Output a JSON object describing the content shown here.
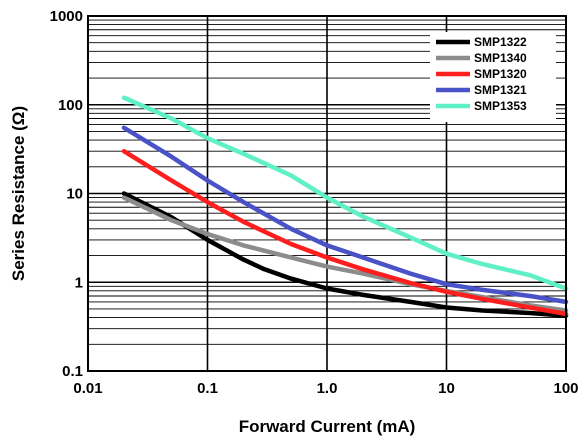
{
  "chart_data": {
    "type": "line",
    "xlabel": "Forward Current (mA)",
    "ylabel": "Series Resistance (Ω)",
    "x_scale": "log",
    "y_scale": "log",
    "xlim": [
      0.01,
      100
    ],
    "ylim": [
      0.1,
      1000
    ],
    "x_ticks": [
      {
        "value": 0.01,
        "label": "0.01"
      },
      {
        "value": 0.1,
        "label": "0.1"
      },
      {
        "value": 1,
        "label": "1.0"
      },
      {
        "value": 10,
        "label": "10"
      },
      {
        "value": 100,
        "label": "100"
      }
    ],
    "y_ticks": [
      {
        "value": 0.1,
        "label": "0.1"
      },
      {
        "value": 1,
        "label": "1"
      },
      {
        "value": 10,
        "label": "10"
      },
      {
        "value": 100,
        "label": "100"
      },
      {
        "value": 1000,
        "label": "1000"
      }
    ],
    "grid": true,
    "legend_position": "top-right",
    "series": [
      {
        "name": "SMP1322",
        "color": "#000000",
        "x": [
          0.02,
          0.05,
          0.1,
          0.2,
          0.3,
          0.5,
          1,
          2,
          5,
          10,
          20,
          50,
          100
        ],
        "y": [
          10,
          5.4,
          3,
          1.8,
          1.4,
          1.1,
          0.85,
          0.72,
          0.6,
          0.52,
          0.48,
          0.45,
          0.42
        ]
      },
      {
        "name": "SMP1340",
        "color": "#8c8c8c",
        "x": [
          0.02,
          0.05,
          0.1,
          0.2,
          0.5,
          1,
          2,
          5,
          10,
          20,
          50,
          100
        ],
        "y": [
          9,
          5,
          3.5,
          2.6,
          1.9,
          1.5,
          1.25,
          0.95,
          0.8,
          0.68,
          0.55,
          0.48
        ]
      },
      {
        "name": "SMP1320",
        "color": "#ff1e1e",
        "x": [
          0.02,
          0.05,
          0.1,
          0.2,
          0.5,
          1,
          2,
          5,
          10,
          20,
          50,
          100
        ],
        "y": [
          30,
          14,
          8,
          4.8,
          2.7,
          1.9,
          1.4,
          0.98,
          0.78,
          0.65,
          0.52,
          0.44
        ]
      },
      {
        "name": "SMP1321",
        "color": "#4a52c8",
        "x": [
          0.02,
          0.05,
          0.1,
          0.2,
          0.5,
          1,
          2,
          5,
          10,
          20,
          50,
          100
        ],
        "y": [
          55,
          26,
          14,
          8,
          4,
          2.6,
          1.9,
          1.25,
          0.95,
          0.82,
          0.7,
          0.6
        ]
      },
      {
        "name": "SMP1353",
        "color": "#5ff0c8",
        "x": [
          0.02,
          0.05,
          0.1,
          0.2,
          0.5,
          1,
          2,
          5,
          10,
          20,
          50,
          100
        ],
        "y": [
          120,
          70,
          42,
          28,
          16,
          9,
          5.5,
          3.2,
          2.1,
          1.6,
          1.2,
          0.85
        ]
      }
    ]
  }
}
